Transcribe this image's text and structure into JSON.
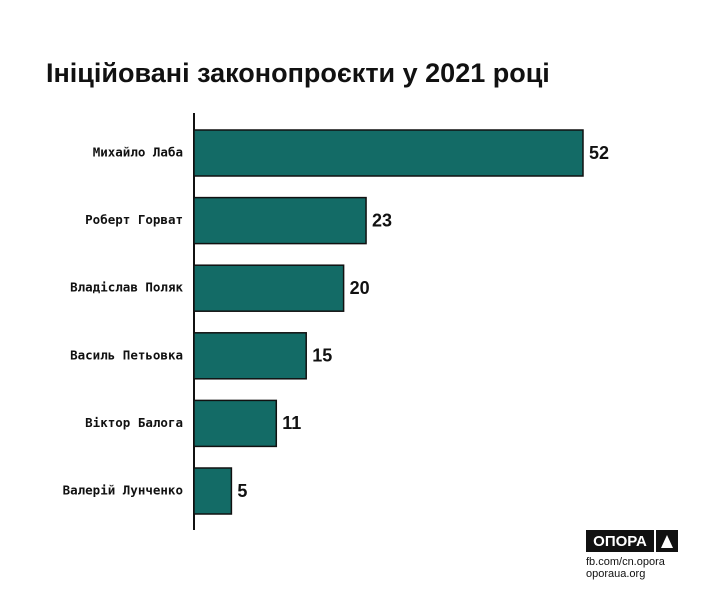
{
  "chart_data": {
    "type": "barh",
    "title": "Ініційовані законопроєкти у 2021 році",
    "categories": [
      "Михайло Лаба",
      "Роберт Горват",
      "Владіслав Поляк",
      "Василь Петьовка",
      "Віктор Балога",
      "Валерій Лунченко"
    ],
    "values": [
      52,
      23,
      20,
      15,
      11,
      5
    ],
    "color": "#136b66"
  },
  "footer": {
    "logo": "ОПОРА",
    "links": [
      "fb.com/cn.opora",
      "oporaua.org"
    ]
  }
}
